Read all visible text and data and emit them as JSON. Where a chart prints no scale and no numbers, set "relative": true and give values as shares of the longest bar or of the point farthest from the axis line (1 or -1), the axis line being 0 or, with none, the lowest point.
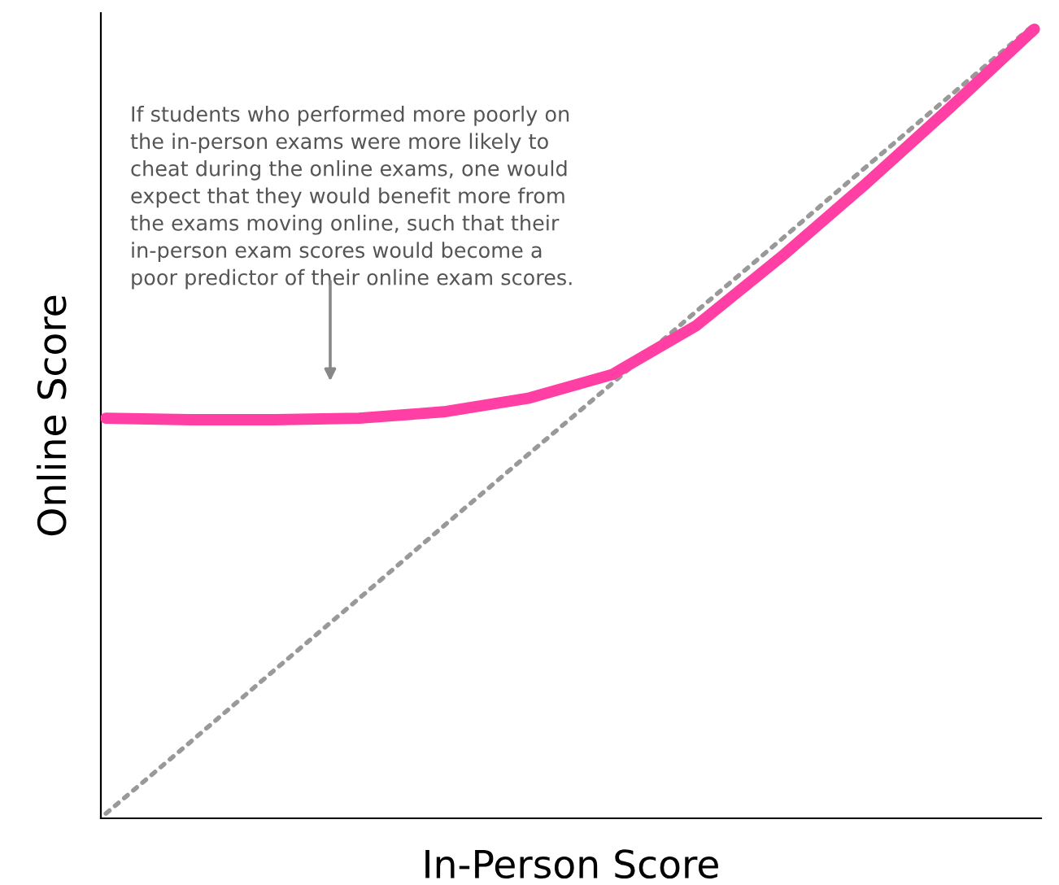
{
  "chart_data": {
    "type": "line",
    "relative": true,
    "xlabel": "In-Person Score",
    "ylabel": "Online Score",
    "categories": [
      null,
      null,
      null,
      null,
      null,
      null,
      null,
      null,
      null,
      null,
      null,
      null
    ],
    "series": [
      {
        "color": "#ff3fa4",
        "values": [
          0.504,
          0.502,
          0.502,
          0.504,
          0.512,
          0.529,
          0.559,
          0.621,
          0.707,
          0.799,
          0.895,
          0.994
        ]
      },
      {
        "color": "#999999",
        "line_style": "dotted",
        "values": [
          0.006,
          0.096,
          0.187,
          0.277,
          0.368,
          0.458,
          0.548,
          0.639,
          0.729,
          0.82,
          0.91,
          1.0
        ]
      }
    ],
    "annotations": [
      "If students who performed more poorly on\nthe in-person exams were more likely to\ncheat during the online exams, one would\nexpect that they would benefit more from\nthe exams moving online, such that their\nin-person exam scores would become a\npoor predictor of their online exam scores."
    ],
    "legend": false,
    "grid": false
  }
}
